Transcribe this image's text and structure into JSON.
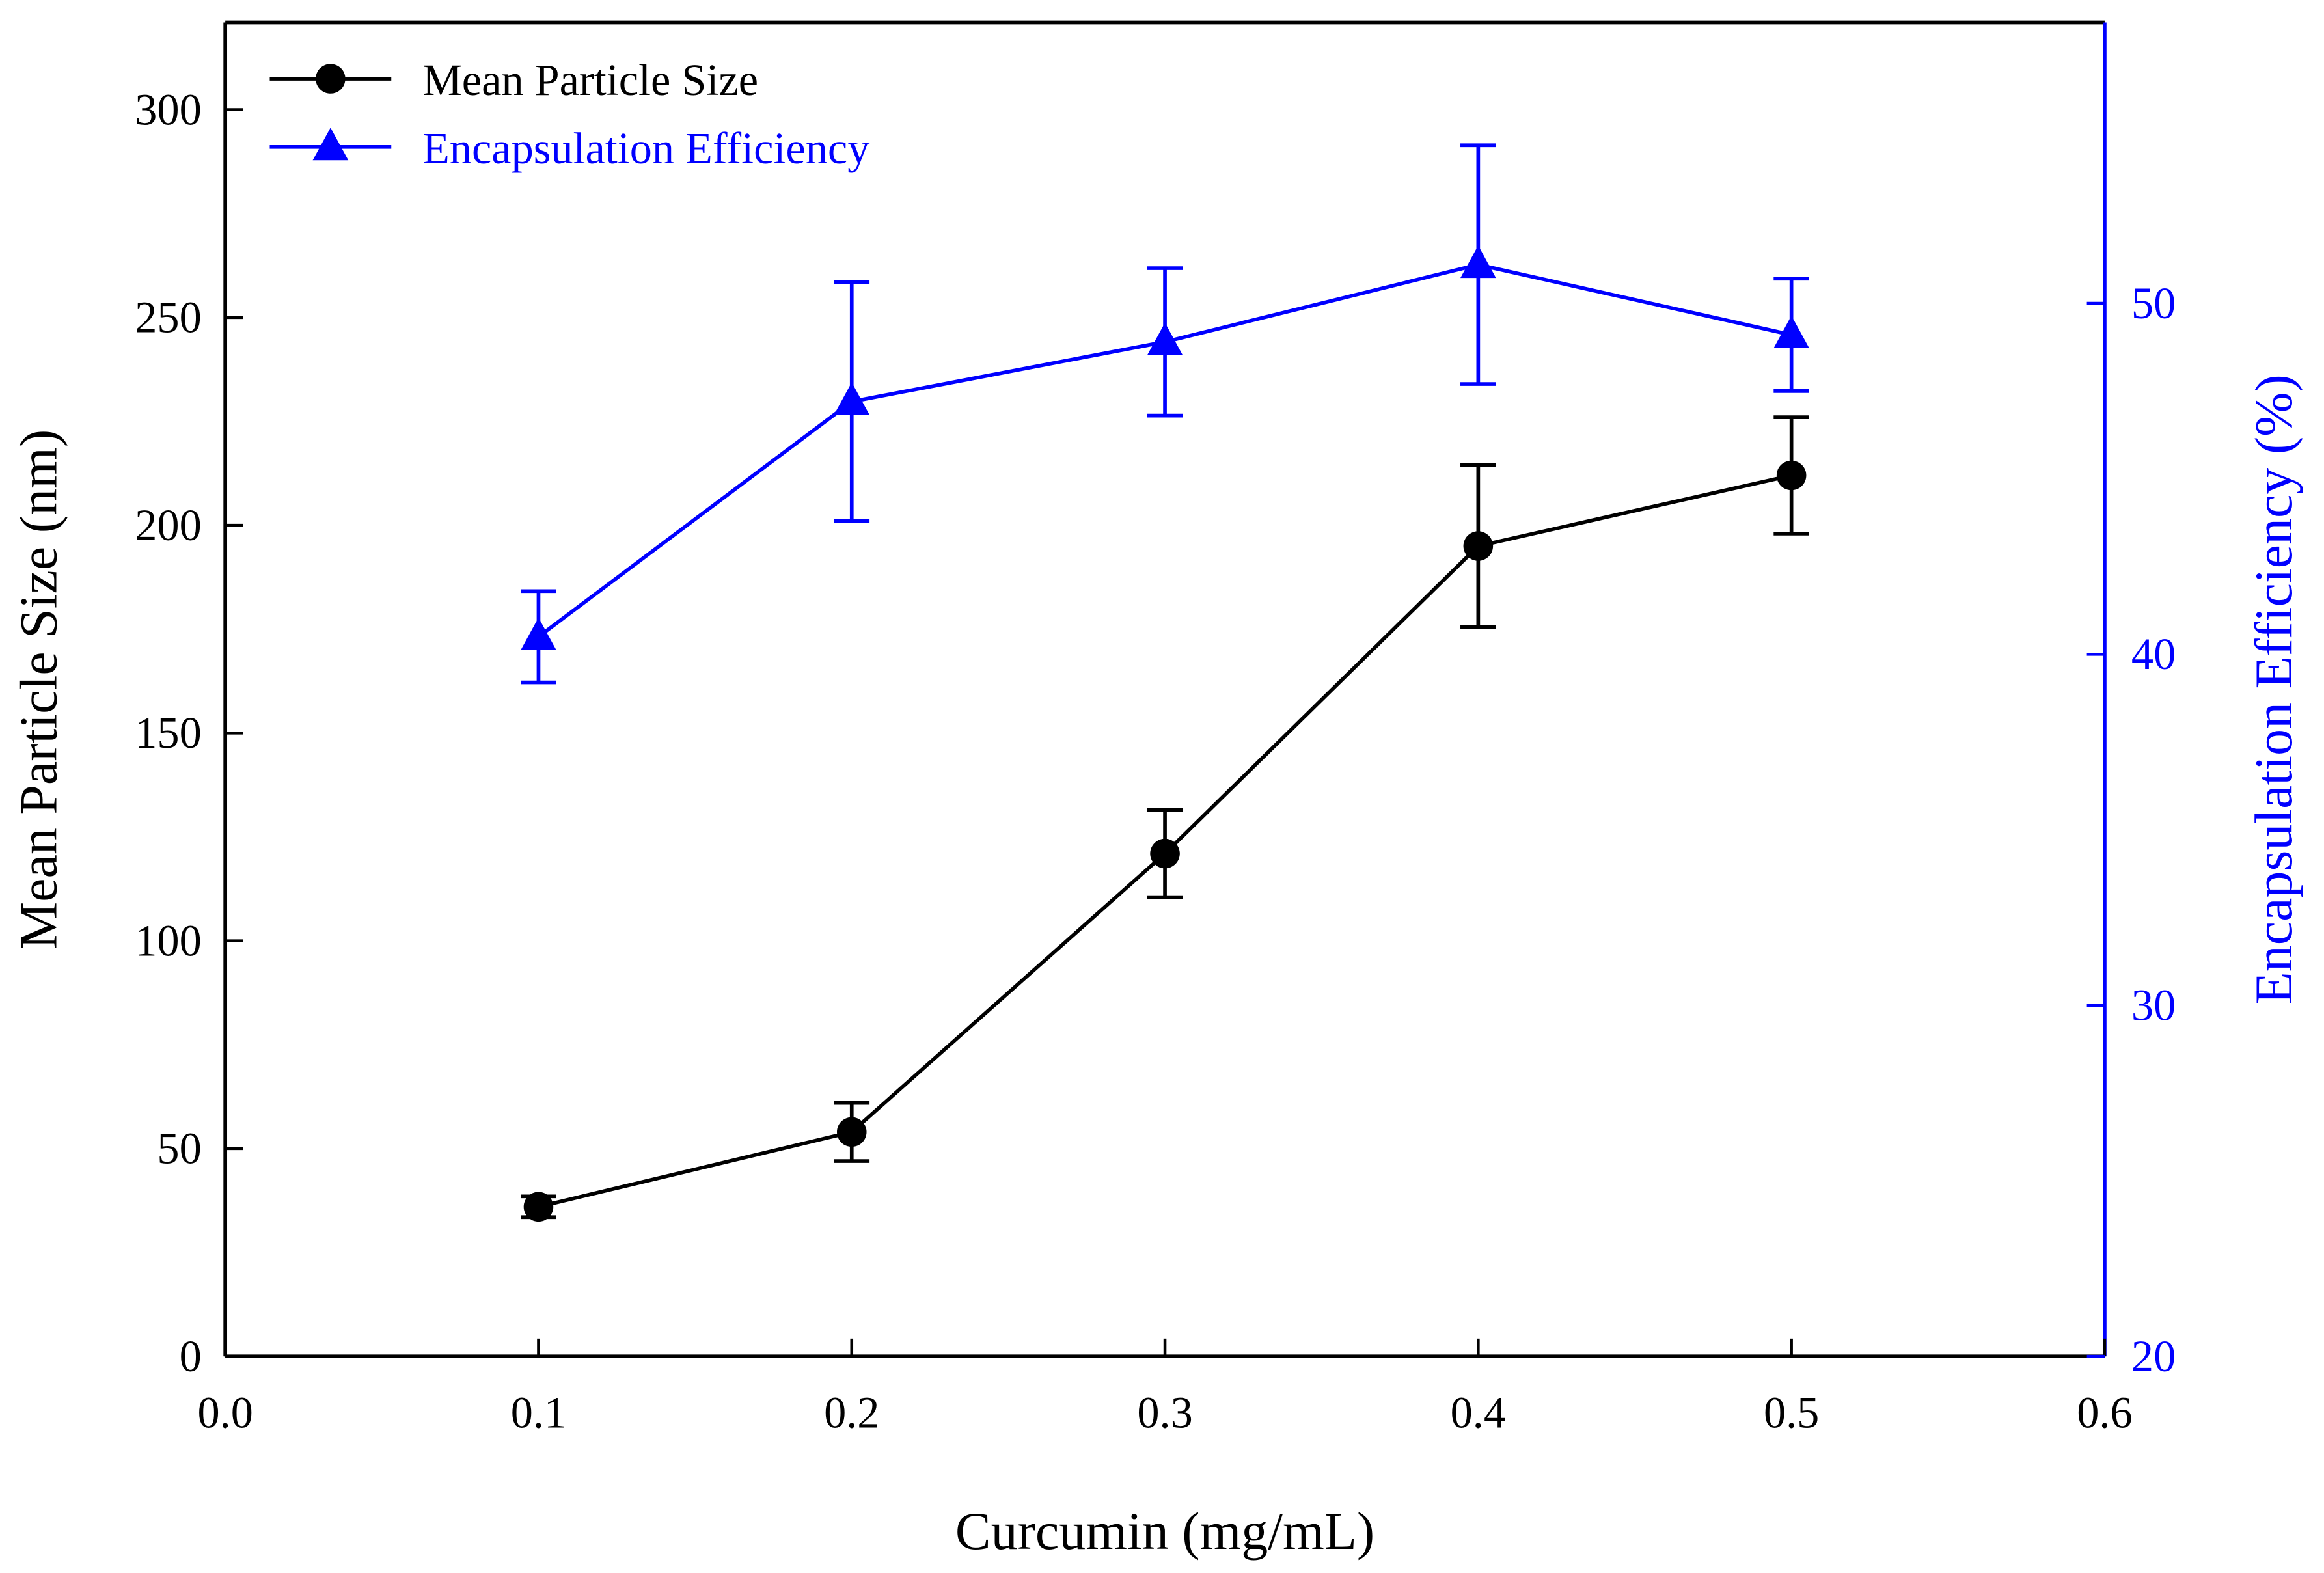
{
  "chart_data": {
    "type": "line",
    "title": "",
    "xlabel": "Curcumin (mg/mL)",
    "ylabel": "Mean Particle Size (nm)",
    "y2label": "Encapsulation Efficiency (%)",
    "xlim": [
      0.0,
      0.6
    ],
    "ylim": [
      0,
      321
    ],
    "y2lim": [
      20,
      58
    ],
    "xticks": [
      "0.0",
      "0.1",
      "0.2",
      "0.3",
      "0.4",
      "0.5",
      "0.6"
    ],
    "yticks": [
      "0",
      "50",
      "100",
      "150",
      "200",
      "250",
      "300"
    ],
    "y2ticks": [
      "20",
      "30",
      "40",
      "50"
    ],
    "grid": false,
    "legend_position": "top-left",
    "x": [
      0.1,
      0.2,
      0.3,
      0.4,
      0.5
    ],
    "series": [
      {
        "name": "Mean Particle Size",
        "axis": "left",
        "color": "#000000",
        "marker": "circle",
        "values": [
          36,
          54,
          121,
          195,
          212
        ],
        "errors": [
          2.5,
          7,
          10.5,
          19.5,
          14
        ]
      },
      {
        "name": "Encapsulation Efficiency",
        "axis": "right",
        "color": "#0000ff",
        "marker": "triangle",
        "values": [
          40.5,
          47.2,
          48.9,
          51.1,
          49.1
        ],
        "errors": [
          1.3,
          3.4,
          2.1,
          3.4,
          1.6
        ]
      }
    ]
  }
}
